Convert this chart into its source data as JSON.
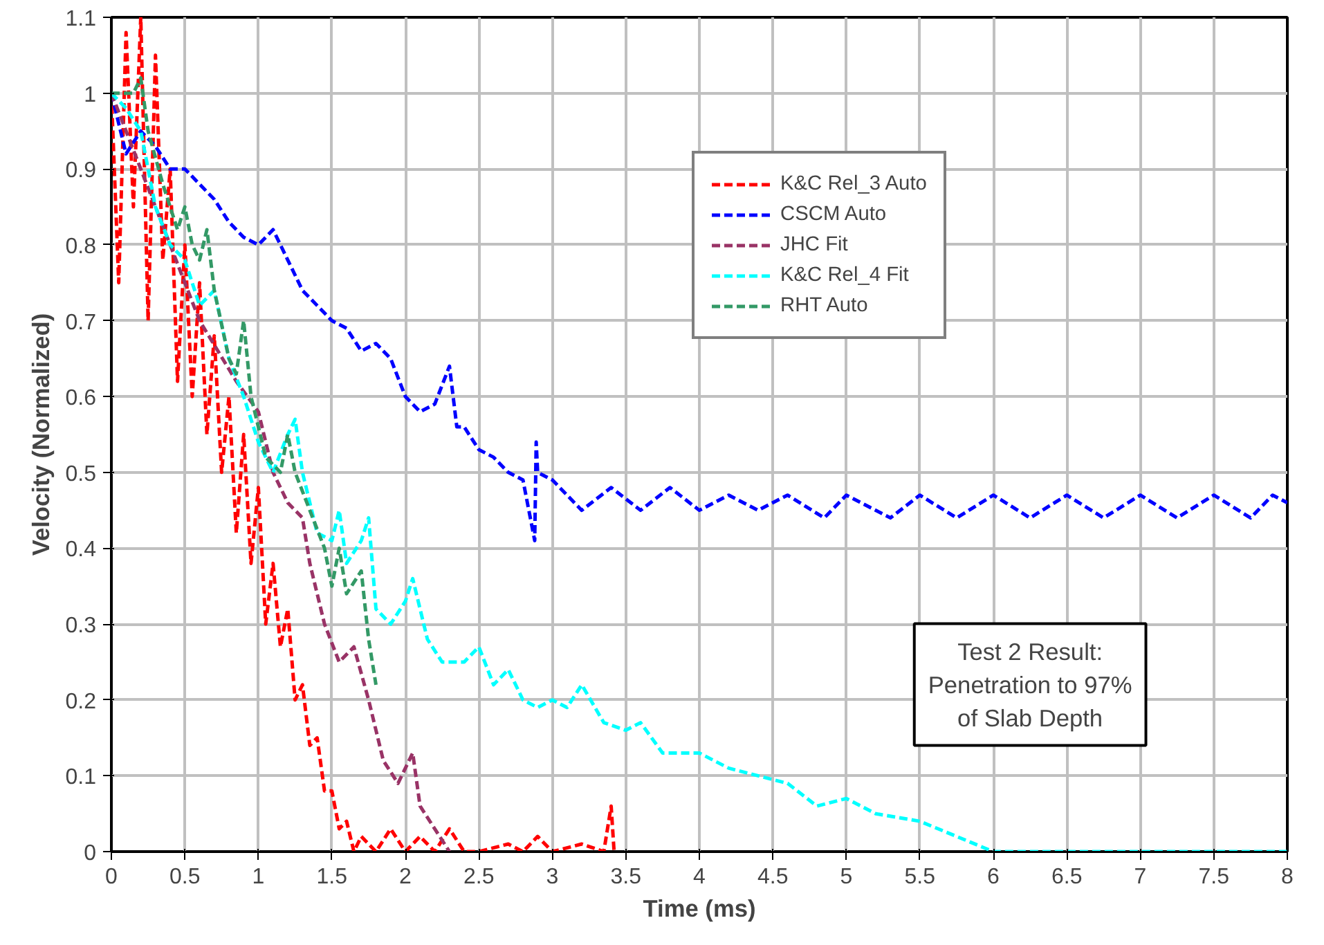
{
  "chart_data": {
    "type": "line",
    "xlabel": "Time (ms)",
    "ylabel": "Velocity (Normalized)",
    "xlim": [
      0,
      8
    ],
    "ylim": [
      0,
      1.1
    ],
    "xticks": [
      0,
      0.5,
      1,
      1.5,
      2,
      2.5,
      3,
      3.5,
      4,
      4.5,
      5,
      5.5,
      6,
      6.5,
      7,
      7.5,
      8
    ],
    "yticks": [
      0,
      0.1,
      0.2,
      0.3,
      0.4,
      0.5,
      0.6,
      0.7,
      0.8,
      0.9,
      1,
      1.1
    ],
    "grid": true,
    "legend": "top right",
    "marker": "none",
    "line_style": "dashed",
    "annotations": [
      "Test 2 Result:\nPenetration to 97%\nof Slab Depth"
    ],
    "series": [
      {
        "name": "K&C Rel_3 Auto",
        "color": "#ff0000",
        "x": [
          0,
          0.05,
          0.1,
          0.15,
          0.2,
          0.25,
          0.3,
          0.35,
          0.4,
          0.45,
          0.5,
          0.55,
          0.6,
          0.65,
          0.7,
          0.75,
          0.8,
          0.85,
          0.9,
          0.95,
          1.0,
          1.05,
          1.1,
          1.15,
          1.2,
          1.25,
          1.3,
          1.35,
          1.4,
          1.45,
          1.5,
          1.55,
          1.6,
          1.65,
          1.7,
          1.8,
          1.9,
          2.0,
          2.1,
          2.2,
          2.3,
          2.4,
          2.5,
          2.7,
          2.8,
          2.9,
          3.0,
          3.2,
          3.35,
          3.4,
          3.42
        ],
        "values": [
          1.0,
          0.75,
          1.08,
          0.85,
          1.1,
          0.7,
          1.05,
          0.78,
          0.9,
          0.62,
          0.8,
          0.6,
          0.75,
          0.55,
          0.68,
          0.5,
          0.6,
          0.42,
          0.55,
          0.38,
          0.48,
          0.3,
          0.38,
          0.27,
          0.32,
          0.2,
          0.22,
          0.14,
          0.15,
          0.08,
          0.08,
          0.03,
          0.04,
          0.0,
          0.02,
          0.0,
          0.03,
          0.0,
          0.02,
          0.0,
          0.03,
          0.0,
          0.0,
          0.01,
          0.0,
          0.02,
          0.0,
          0.01,
          0.0,
          0.06,
          0.0
        ]
      },
      {
        "name": "CSCM Auto",
        "color": "#0000ff",
        "x": [
          0,
          0.1,
          0.2,
          0.3,
          0.4,
          0.5,
          0.6,
          0.7,
          0.8,
          0.9,
          1.0,
          1.1,
          1.2,
          1.3,
          1.4,
          1.5,
          1.6,
          1.7,
          1.8,
          1.9,
          2.0,
          2.1,
          2.2,
          2.3,
          2.35,
          2.4,
          2.5,
          2.6,
          2.7,
          2.8,
          2.88,
          2.89,
          2.9,
          3.0,
          3.1,
          3.2,
          3.4,
          3.6,
          3.8,
          4.0,
          4.2,
          4.4,
          4.6,
          4.85,
          5.0,
          5.3,
          5.5,
          5.75,
          6.0,
          6.25,
          6.5,
          6.75,
          7.0,
          7.25,
          7.5,
          7.75,
          7.9,
          8.0
        ],
        "values": [
          1.0,
          0.92,
          0.95,
          0.93,
          0.9,
          0.9,
          0.88,
          0.86,
          0.83,
          0.81,
          0.8,
          0.82,
          0.78,
          0.74,
          0.72,
          0.7,
          0.69,
          0.66,
          0.67,
          0.65,
          0.6,
          0.58,
          0.59,
          0.64,
          0.56,
          0.56,
          0.53,
          0.52,
          0.5,
          0.49,
          0.41,
          0.54,
          0.5,
          0.49,
          0.47,
          0.45,
          0.48,
          0.45,
          0.48,
          0.45,
          0.47,
          0.45,
          0.47,
          0.44,
          0.47,
          0.44,
          0.47,
          0.44,
          0.47,
          0.44,
          0.47,
          0.44,
          0.47,
          0.44,
          0.47,
          0.44,
          0.47,
          0.46
        ]
      },
      {
        "name": "JHC Fit",
        "color": "#993366",
        "x": [
          0,
          0.3,
          0.6,
          0.85,
          1.0,
          1.1,
          1.2,
          1.3,
          1.35,
          1.45,
          1.55,
          1.65,
          1.75,
          1.85,
          1.95,
          2.05,
          2.1,
          2.2,
          2.3
        ],
        "values": [
          1.0,
          0.85,
          0.7,
          0.62,
          0.58,
          0.5,
          0.46,
          0.44,
          0.38,
          0.3,
          0.25,
          0.27,
          0.2,
          0.12,
          0.09,
          0.13,
          0.06,
          0.03,
          0.0
        ]
      },
      {
        "name": "K&C Rel_4 Fit",
        "color": "#00ffff",
        "x": [
          0,
          0.1,
          0.2,
          0.3,
          0.4,
          0.5,
          0.6,
          0.7,
          0.8,
          0.9,
          1.0,
          1.1,
          1.2,
          1.25,
          1.3,
          1.4,
          1.5,
          1.55,
          1.6,
          1.7,
          1.75,
          1.8,
          1.9,
          2.0,
          2.05,
          2.15,
          2.25,
          2.4,
          2.5,
          2.6,
          2.7,
          2.8,
          2.9,
          3.0,
          3.1,
          3.2,
          3.35,
          3.5,
          3.6,
          3.75,
          4.0,
          4.2,
          4.4,
          4.6,
          4.8,
          5.0,
          5.2,
          5.5,
          5.75,
          6.0,
          6.25,
          6.5,
          7.0,
          7.5,
          8.0
        ],
        "values": [
          1.0,
          0.98,
          0.95,
          0.85,
          0.8,
          0.78,
          0.72,
          0.74,
          0.65,
          0.6,
          0.54,
          0.5,
          0.55,
          0.57,
          0.5,
          0.42,
          0.41,
          0.45,
          0.38,
          0.41,
          0.44,
          0.32,
          0.3,
          0.33,
          0.36,
          0.28,
          0.25,
          0.25,
          0.27,
          0.22,
          0.24,
          0.2,
          0.19,
          0.2,
          0.19,
          0.22,
          0.17,
          0.16,
          0.17,
          0.13,
          0.13,
          0.11,
          0.1,
          0.09,
          0.06,
          0.07,
          0.05,
          0.04,
          0.02,
          0.0,
          0.0,
          0.0,
          0.0,
          0.0,
          0.0
        ]
      },
      {
        "name": "RHT Auto",
        "color": "#339966",
        "x": [
          0,
          0.15,
          0.2,
          0.25,
          0.35,
          0.45,
          0.5,
          0.55,
          0.6,
          0.65,
          0.7,
          0.8,
          0.85,
          0.9,
          0.95,
          1.0,
          1.05,
          1.15,
          1.2,
          1.25,
          1.35,
          1.45,
          1.5,
          1.55,
          1.6,
          1.7,
          1.75,
          1.8
        ],
        "values": [
          1.0,
          1.0,
          1.02,
          0.95,
          0.88,
          0.82,
          0.85,
          0.8,
          0.78,
          0.82,
          0.74,
          0.65,
          0.63,
          0.7,
          0.6,
          0.56,
          0.52,
          0.5,
          0.55,
          0.5,
          0.45,
          0.4,
          0.35,
          0.4,
          0.34,
          0.37,
          0.28,
          0.22
        ]
      }
    ]
  }
}
